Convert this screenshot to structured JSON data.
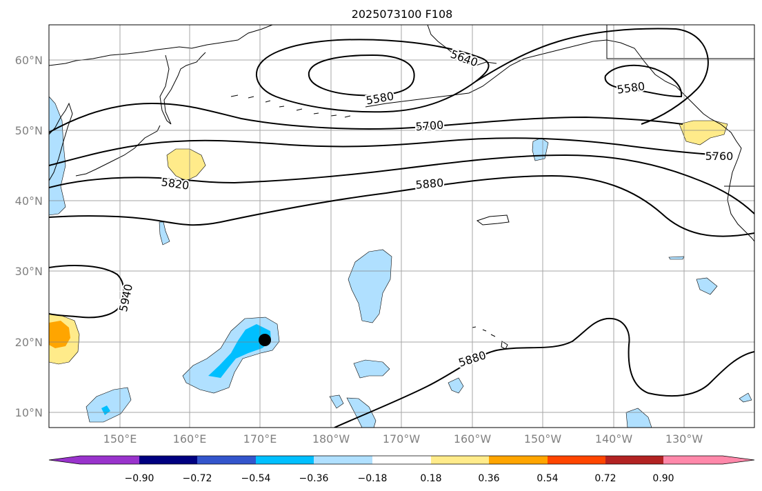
{
  "title": "2025073100 F108",
  "map": {
    "lat_labels": [
      "10°N",
      "20°N",
      "30°N",
      "40°N",
      "50°N",
      "60°N"
    ],
    "lon_labels": [
      "150°E",
      "160°E",
      "170°E",
      "180°W",
      "170°W",
      "160°W",
      "150°W",
      "140°W",
      "130°W"
    ],
    "contour_labels": [
      "5640",
      "5580",
      "5580",
      "5700",
      "5760",
      "5820",
      "5880",
      "5880",
      "5940"
    ],
    "storm_marker": "storm-center-dot"
  },
  "colorbar": {
    "colors": [
      "#9933cc",
      "#000080",
      "#3355cc",
      "#00bfff",
      "#b0e0ff",
      "#ffffff",
      "#ffeb8a",
      "#ffa500",
      "#ff4500",
      "#b22222",
      "#ff88aa"
    ],
    "tick_labels": [
      "−0.90",
      "−0.72",
      "−0.54",
      "−0.36",
      "−0.18",
      "0.18",
      "0.36",
      "0.54",
      "0.72",
      "0.90"
    ]
  }
}
